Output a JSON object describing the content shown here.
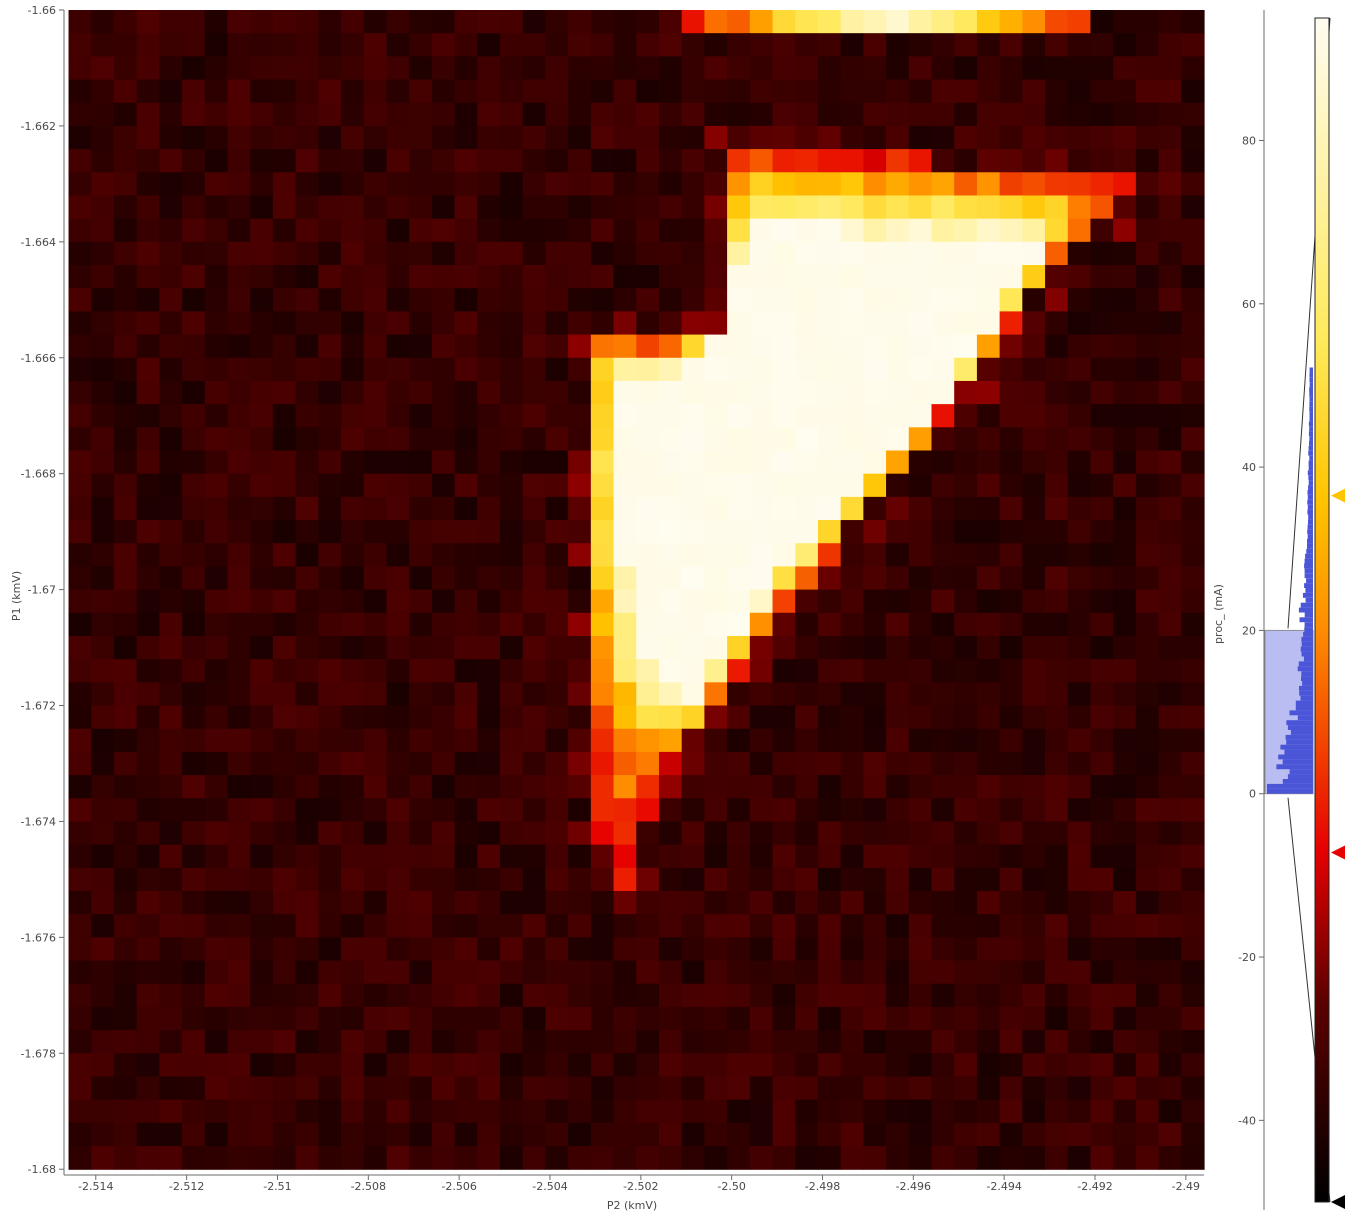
{
  "chart_data": {
    "type": "heatmap",
    "xlabel": "P2 (kmV)",
    "ylabel": "P1 (kmV)",
    "xlim": [
      -2.5147,
      -2.4896
    ],
    "ylim": [
      -1.6801,
      -1.66
    ],
    "data_x_range": [
      -2.5146,
      -2.4896
    ],
    "data_y_range": [
      -1.68,
      -1.66
    ],
    "grid": false,
    "x_ticks": [
      -2.514,
      -2.512,
      -2.51,
      -2.508,
      -2.506,
      -2.504,
      -2.502,
      -2.5,
      -2.498,
      -2.496,
      -2.494,
      -2.492,
      -2.49
    ],
    "x_tick_labels": [
      "-2.514",
      "-2.512",
      "-2.51",
      "-2.508",
      "-2.506",
      "-2.504",
      "-2.502",
      "-2.50",
      "-2.498",
      "-2.496",
      "-2.494",
      "-2.492",
      "-2.49"
    ],
    "y_ticks": [
      -1.66,
      -1.662,
      -1.664,
      -1.666,
      -1.668,
      -1.67,
      -1.672,
      -1.674,
      -1.676,
      -1.678,
      -1.68
    ],
    "y_tick_labels": [
      "-1.66",
      "-1.662",
      "-1.664",
      "-1.666",
      "-1.668",
      "-1.67",
      "-1.672",
      "-1.674",
      "-1.676",
      "-1.678",
      "-1.68"
    ],
    "grid_size": {
      "nx": 50,
      "ny": 50
    },
    "background_level": -36,
    "colorscale": {
      "label": "proc_ (mA)",
      "range": [
        -50,
        95
      ],
      "ticks": [
        80,
        60,
        40,
        20,
        0,
        -20,
        -40
      ],
      "tick_labels": [
        "80",
        "60",
        "40",
        "20",
        "0",
        "-20",
        "-40"
      ],
      "stops": [
        {
          "value": -50,
          "color": "#000000"
        },
        {
          "value": -25,
          "color": "#5e0000"
        },
        {
          "value": -7,
          "color": "#e60000"
        },
        {
          "value": 20,
          "color": "#ff8c00"
        },
        {
          "value": 36,
          "color": "#ffc400"
        },
        {
          "value": 55,
          "color": "#ffe95a"
        },
        {
          "value": 95,
          "color": "#fffcf0"
        }
      ],
      "level_markers": [
        {
          "value": 36.5,
          "color": "#ffc400"
        },
        {
          "value": -7.2,
          "color": "#e60000"
        },
        {
          "value": -50,
          "color": "#000000"
        }
      ],
      "histogram_color": "#4b55d8",
      "histogram_region_color": "#b9bdf2",
      "histogram_region_range": [
        0,
        20
      ]
    },
    "region": {
      "description_values": "bright triangular feature in data coordinates",
      "outer": [
        [
          -2.5033,
          -1.6657
        ],
        [
          -2.5003,
          -1.6656
        ],
        [
          -2.5003,
          -1.6623
        ],
        [
          -2.4908,
          -1.6629
        ],
        [
          -2.4928,
          -1.6643
        ],
        [
          -2.4956,
          -1.6673
        ],
        [
          -2.499,
          -1.6705
        ],
        [
          -2.5017,
          -1.6735
        ],
        [
          -2.5023,
          -1.6752
        ],
        [
          -2.503,
          -1.674
        ],
        [
          -2.5033,
          -1.67
        ]
      ],
      "inner": [
        [
          -2.5025,
          -1.6663
        ],
        [
          -2.501,
          -1.6663
        ],
        [
          -2.4995,
          -1.6637
        ],
        [
          -2.4932,
          -1.664
        ],
        [
          -2.4952,
          -1.6665
        ],
        [
          -2.499,
          -1.6697
        ],
        [
          -2.501,
          -1.672
        ],
        [
          -2.502,
          -1.6712
        ],
        [
          -2.5025,
          -1.669
        ]
      ],
      "top_strip": {
        "x_range": [
          -2.501,
          -2.492
        ],
        "y": -1.66
      }
    }
  }
}
